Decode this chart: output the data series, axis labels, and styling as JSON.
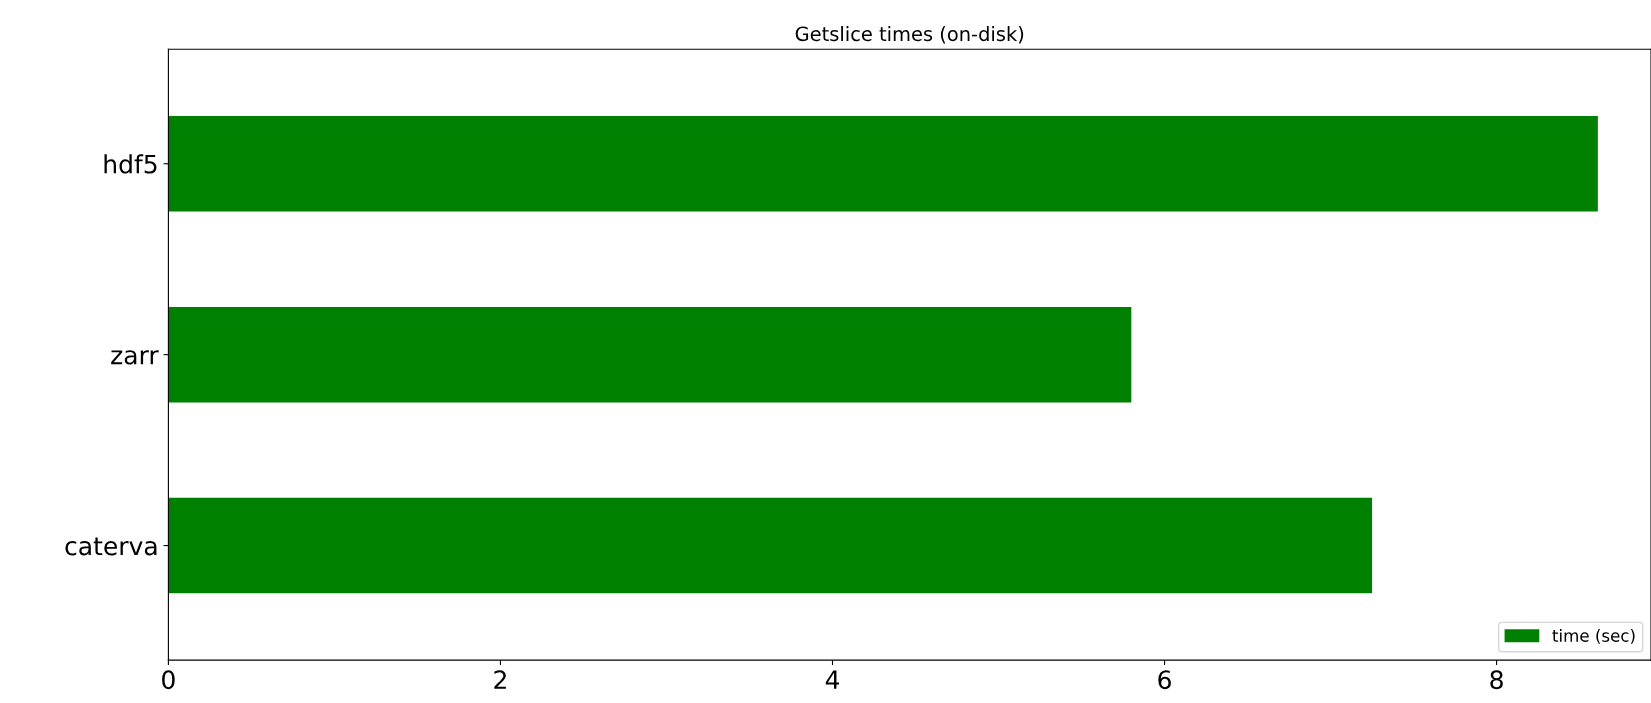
{
  "chart_data": {
    "type": "bar",
    "orientation": "horizontal",
    "title": "Getslice times (on-disk)",
    "categories": [
      "hdf5",
      "zarr",
      "caterva"
    ],
    "series": [
      {
        "name": "time (sec)",
        "color": "#008000",
        "values": [
          8.61,
          5.8,
          7.25
        ]
      }
    ],
    "xlim": [
      0,
      8.93
    ],
    "xticks": [
      0,
      2,
      4,
      6,
      8
    ],
    "legend": "bottom right",
    "grid": false
  }
}
